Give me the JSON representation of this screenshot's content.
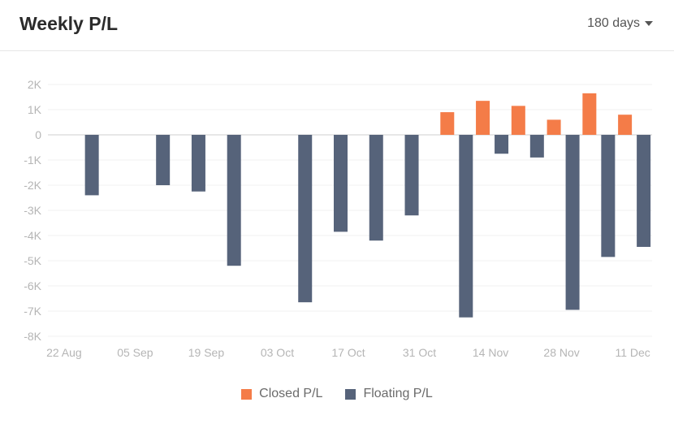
{
  "header": {
    "title": "Weekly P/L",
    "range_label": "180 days",
    "range_icon": "chevron-down-icon"
  },
  "colors": {
    "closed": "#f47c48",
    "floating": "#56637a",
    "grid": "#f0f0f0",
    "zero": "#cfcfcf"
  },
  "chart_data": {
    "type": "bar",
    "title": "Weekly P/L",
    "xlabel": "",
    "ylabel": "",
    "ylim": [
      -8000,
      2000
    ],
    "yticks": [
      2000,
      1000,
      0,
      -1000,
      -2000,
      -3000,
      -4000,
      -5000,
      -6000,
      -7000,
      -8000
    ],
    "ytick_labels": [
      "2K",
      "1K",
      "0",
      "-1K",
      "-2K",
      "-3K",
      "-4K",
      "-5K",
      "-6K",
      "-7K",
      "-8K"
    ],
    "grid": true,
    "legend_position": "bottom-center",
    "categories": [
      "22 Aug",
      "29 Aug",
      "05 Sep",
      "12 Sep",
      "19 Sep",
      "26 Sep",
      "03 Oct",
      "10 Oct",
      "17 Oct",
      "24 Oct",
      "31 Oct",
      "07 Nov",
      "14 Nov",
      "21 Nov",
      "28 Nov",
      "05 Dec",
      "11 Dec"
    ],
    "xtick_labels": [
      "22 Aug",
      "05 Sep",
      "19 Sep",
      "03 Oct",
      "17 Oct",
      "31 Oct",
      "14 Nov",
      "28 Nov",
      "11 Dec"
    ],
    "series": [
      {
        "name": "Closed P/L",
        "values": [
          0,
          0,
          0,
          0,
          0,
          0,
          0,
          0,
          0,
          0,
          0,
          900,
          1350,
          1150,
          600,
          1650,
          800
        ]
      },
      {
        "name": "Floating P/L",
        "values": [
          0,
          -2400,
          0,
          -2000,
          -2250,
          -5200,
          0,
          -6650,
          -3850,
          -4200,
          -3200,
          -7250,
          -750,
          -900,
          -6950,
          -4850,
          -4450
        ]
      }
    ]
  }
}
